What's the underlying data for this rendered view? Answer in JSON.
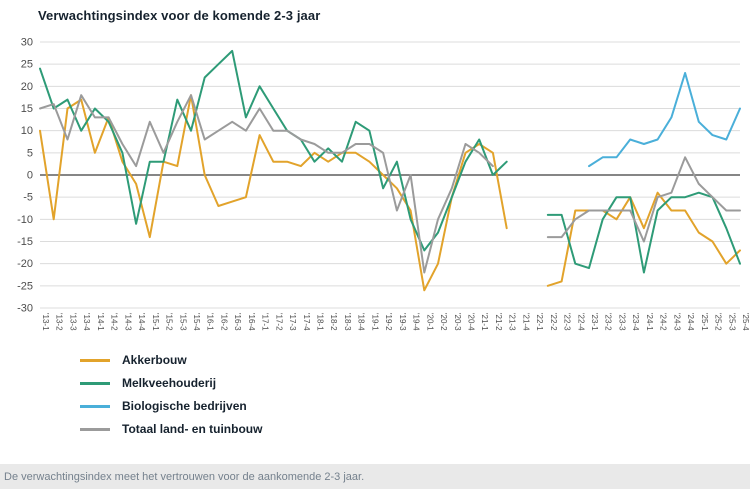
{
  "title": "Verwachtingsindex voor de komende 2-3 jaar",
  "footer": {
    "note": "De verwachtingsindex meet het vertrouwen voor de aankomende 2-3 jaar."
  },
  "colors": {
    "akkerbouw": "#E2A32B",
    "melkveehouderij": "#2E9B77",
    "biologische_bedrijven": "#4AAFD9",
    "totaal": "#9B9B9B",
    "zero_line": "#3D3D3D",
    "gridline": "#DCDCDC",
    "footer_bg": "#E9E9E9"
  },
  "chart_data": {
    "type": "line",
    "title": "Verwachtingsindex voor de komende 2-3 jaar",
    "ylim": [
      -30,
      30
    ],
    "yticks": [
      30,
      25,
      20,
      15,
      10,
      5,
      0,
      -5,
      -10,
      -15,
      -20,
      -25,
      -30
    ],
    "grid": true,
    "legend_position": "bottom-left",
    "categories": [
      "'13-1",
      "'13-2",
      "'13-3",
      "'13-4",
      "'14-1",
      "'14-2",
      "'14-3",
      "'14-4",
      "'15-1",
      "'15-2",
      "'15-3",
      "'15-4",
      "'16-1",
      "'16-2",
      "'16-3",
      "'16-4",
      "'17-1",
      "'17-2",
      "'17-3",
      "'17-4",
      "'18-1",
      "'18-2",
      "'18-3",
      "'18-4",
      "'19-1",
      "'19-2",
      "'19-3",
      "'19-4",
      "'20-1",
      "'20-2",
      "'20-3",
      "'20-4",
      "'21-1",
      "'21-2",
      "'21-3",
      "'21-4",
      "'22-1",
      "'22-2",
      "'22-3",
      "'22-4",
      "'23-1",
      "'23-2",
      "'23-3",
      "'23-4",
      "'24-1",
      "'24-2",
      "'24-3",
      "'24-4",
      "'25-1",
      "'25-2",
      "'25-3",
      "'25-4"
    ],
    "series": [
      {
        "name": "Akkerbouw",
        "color": "#E2A32B",
        "values": [
          10,
          -10,
          15,
          17,
          5,
          13,
          3,
          -2,
          -14,
          3,
          2,
          18,
          0,
          -7,
          -6,
          -5,
          9,
          3,
          3,
          2,
          5,
          3,
          5,
          5,
          3,
          0,
          -3,
          -8,
          -26,
          -20,
          -5,
          5,
          7,
          5,
          -12,
          null,
          null,
          -25,
          -24,
          -8,
          -8,
          -8,
          -10,
          -5,
          -12,
          -4,
          -8,
          -8,
          -13,
          -15,
          -20,
          -17
        ]
      },
      {
        "name": "Melkveehouderij",
        "color": "#2E9B77",
        "values": [
          24,
          15,
          17,
          10,
          15,
          12,
          5,
          -11,
          3,
          3,
          17,
          10,
          22,
          25,
          28,
          13,
          20,
          15,
          10,
          8,
          3,
          6,
          3,
          12,
          10,
          -3,
          3,
          -10,
          -17,
          -13,
          -5,
          3,
          8,
          0,
          3,
          null,
          null,
          -9,
          -9,
          -20,
          -21,
          -10,
          -5,
          -5,
          -22,
          -8,
          -5,
          -5,
          -4,
          -5,
          -12,
          -20
        ]
      },
      {
        "name": "Biologische bedrijven",
        "color": "#4AAFD9",
        "values": [
          null,
          null,
          null,
          null,
          null,
          null,
          null,
          null,
          null,
          null,
          null,
          null,
          null,
          null,
          null,
          null,
          null,
          null,
          null,
          null,
          null,
          null,
          null,
          null,
          null,
          null,
          null,
          null,
          null,
          null,
          null,
          null,
          null,
          null,
          null,
          null,
          null,
          null,
          null,
          null,
          2,
          4,
          4,
          8,
          7,
          8,
          13,
          23,
          12,
          9,
          8,
          15
        ]
      },
      {
        "name": "Totaal land- en tuinbouw",
        "color": "#9B9B9B",
        "values": [
          15,
          16,
          8,
          18,
          13,
          13,
          7,
          2,
          12,
          5,
          12,
          18,
          8,
          10,
          12,
          10,
          15,
          10,
          10,
          8,
          7,
          5,
          5,
          7,
          7,
          5,
          -8,
          0,
          -22,
          -10,
          -3,
          7,
          5,
          2,
          null,
          null,
          null,
          -14,
          -14,
          -10,
          -8,
          -8,
          -8,
          -8,
          -15,
          -5,
          -4,
          4,
          -2,
          -5,
          -8,
          -8
        ]
      }
    ]
  }
}
